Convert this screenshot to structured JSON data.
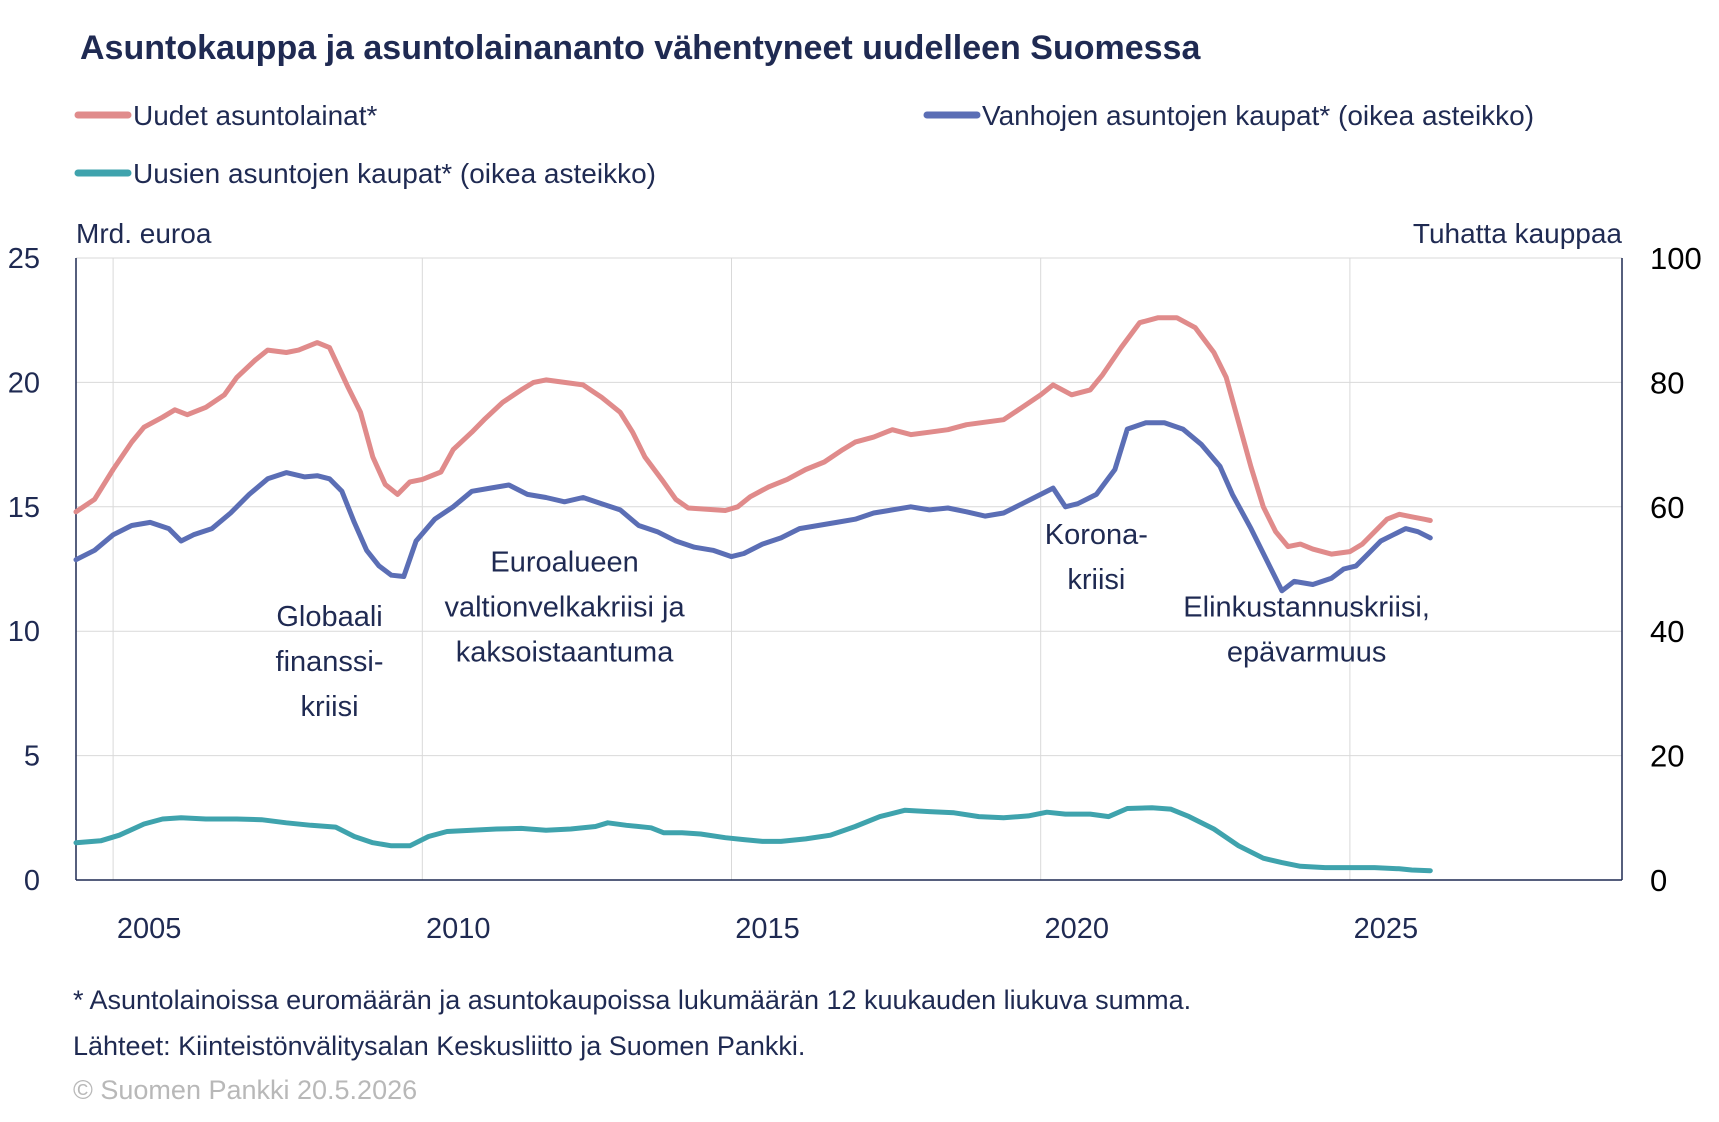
{
  "chart_data": {
    "type": "line",
    "title": "Asuntokauppa ja asuntolainananto vähentyneet uudelleen Suomessa",
    "ylabel_left": "Mrd. euroa",
    "ylabel_right": "Tuhatta kauppaa",
    "ylim_left": [
      0,
      25
    ],
    "ylim_right": [
      0,
      100
    ],
    "xlim": [
      2004.4,
      2029.4
    ],
    "y_ticks_left": [
      0,
      5,
      10,
      15,
      20,
      25
    ],
    "y_ticks_right": [
      0,
      20,
      40,
      60,
      80,
      100
    ],
    "x_ticks": [
      2005,
      2010,
      2015,
      2020,
      2025
    ],
    "grid": true,
    "legend": "top",
    "series": [
      {
        "name": "Uudet asuntolainat*",
        "axis": "left",
        "color": "#e08b8b",
        "points": [
          [
            2004.4,
            14.8
          ],
          [
            2004.7,
            15.3
          ],
          [
            2005.0,
            16.5
          ],
          [
            2005.3,
            17.6
          ],
          [
            2005.5,
            18.2
          ],
          [
            2005.8,
            18.6
          ],
          [
            2006.0,
            18.9
          ],
          [
            2006.2,
            18.7
          ],
          [
            2006.5,
            19.0
          ],
          [
            2006.8,
            19.5
          ],
          [
            2007.0,
            20.2
          ],
          [
            2007.3,
            20.9
          ],
          [
            2007.5,
            21.3
          ],
          [
            2007.8,
            21.2
          ],
          [
            2008.0,
            21.3
          ],
          [
            2008.3,
            21.6
          ],
          [
            2008.5,
            21.4
          ],
          [
            2008.8,
            19.8
          ],
          [
            2009.0,
            18.8
          ],
          [
            2009.2,
            17.0
          ],
          [
            2009.4,
            15.9
          ],
          [
            2009.6,
            15.5
          ],
          [
            2009.8,
            16.0
          ],
          [
            2010.0,
            16.1
          ],
          [
            2010.3,
            16.4
          ],
          [
            2010.5,
            17.3
          ],
          [
            2010.8,
            18.0
          ],
          [
            2011.0,
            18.5
          ],
          [
            2011.3,
            19.2
          ],
          [
            2011.6,
            19.7
          ],
          [
            2011.8,
            20.0
          ],
          [
            2012.0,
            20.1
          ],
          [
            2012.3,
            20.0
          ],
          [
            2012.6,
            19.9
          ],
          [
            2012.9,
            19.4
          ],
          [
            2013.2,
            18.8
          ],
          [
            2013.4,
            18.0
          ],
          [
            2013.6,
            17.0
          ],
          [
            2013.9,
            16.0
          ],
          [
            2014.1,
            15.3
          ],
          [
            2014.3,
            14.95
          ],
          [
            2014.6,
            14.9
          ],
          [
            2014.9,
            14.85
          ],
          [
            2015.1,
            15.0
          ],
          [
            2015.3,
            15.4
          ],
          [
            2015.6,
            15.8
          ],
          [
            2015.9,
            16.1
          ],
          [
            2016.2,
            16.5
          ],
          [
            2016.5,
            16.8
          ],
          [
            2016.8,
            17.3
          ],
          [
            2017.0,
            17.6
          ],
          [
            2017.3,
            17.8
          ],
          [
            2017.6,
            18.1
          ],
          [
            2017.9,
            17.9
          ],
          [
            2018.2,
            18.0
          ],
          [
            2018.5,
            18.1
          ],
          [
            2018.8,
            18.3
          ],
          [
            2019.1,
            18.4
          ],
          [
            2019.4,
            18.5
          ],
          [
            2019.7,
            19.0
          ],
          [
            2020.0,
            19.5
          ],
          [
            2020.2,
            19.9
          ],
          [
            2020.5,
            19.5
          ],
          [
            2020.8,
            19.7
          ],
          [
            2021.0,
            20.3
          ],
          [
            2021.3,
            21.4
          ],
          [
            2021.6,
            22.4
          ],
          [
            2021.9,
            22.6
          ],
          [
            2022.2,
            22.6
          ],
          [
            2022.5,
            22.2
          ],
          [
            2022.8,
            21.2
          ],
          [
            2023.0,
            20.2
          ],
          [
            2023.2,
            18.4
          ],
          [
            2023.4,
            16.6
          ],
          [
            2023.6,
            15.0
          ],
          [
            2023.8,
            14.0
          ],
          [
            2024.0,
            13.4
          ],
          [
            2024.2,
            13.5
          ],
          [
            2024.4,
            13.3
          ],
          [
            2024.7,
            13.1
          ],
          [
            2025.0,
            13.2
          ],
          [
            2025.2,
            13.5
          ],
          [
            2025.4,
            14.0
          ],
          [
            2025.6,
            14.5
          ],
          [
            2025.8,
            14.7
          ],
          [
            2026.0,
            14.6
          ],
          [
            2026.2,
            14.5
          ],
          [
            2026.3,
            14.45
          ]
        ]
      },
      {
        "name": "Vanhojen asuntojen kaupat* (oikea asteikko)",
        "axis": "right",
        "color": "#5b6eb5",
        "points": [
          [
            2004.4,
            51.5
          ],
          [
            2004.7,
            53.0
          ],
          [
            2005.0,
            55.5
          ],
          [
            2005.3,
            57.0
          ],
          [
            2005.6,
            57.5
          ],
          [
            2005.9,
            56.5
          ],
          [
            2006.1,
            54.5
          ],
          [
            2006.3,
            55.5
          ],
          [
            2006.6,
            56.5
          ],
          [
            2006.9,
            59.0
          ],
          [
            2007.2,
            62.0
          ],
          [
            2007.5,
            64.5
          ],
          [
            2007.8,
            65.5
          ],
          [
            2008.1,
            64.8
          ],
          [
            2008.3,
            65.0
          ],
          [
            2008.5,
            64.5
          ],
          [
            2008.7,
            62.5
          ],
          [
            2008.9,
            57.5
          ],
          [
            2009.1,
            53.0
          ],
          [
            2009.3,
            50.5
          ],
          [
            2009.5,
            49.0
          ],
          [
            2009.7,
            48.8
          ],
          [
            2009.9,
            54.5
          ],
          [
            2010.2,
            58.0
          ],
          [
            2010.5,
            60.0
          ],
          [
            2010.8,
            62.5
          ],
          [
            2011.1,
            63.0
          ],
          [
            2011.4,
            63.5
          ],
          [
            2011.7,
            62.0
          ],
          [
            2012.0,
            61.5
          ],
          [
            2012.3,
            60.8
          ],
          [
            2012.6,
            61.5
          ],
          [
            2012.9,
            60.5
          ],
          [
            2013.2,
            59.5
          ],
          [
            2013.5,
            57.0
          ],
          [
            2013.8,
            56.0
          ],
          [
            2014.1,
            54.5
          ],
          [
            2014.4,
            53.5
          ],
          [
            2014.7,
            53.0
          ],
          [
            2015.0,
            52.0
          ],
          [
            2015.2,
            52.5
          ],
          [
            2015.5,
            54.0
          ],
          [
            2015.8,
            55.0
          ],
          [
            2016.1,
            56.5
          ],
          [
            2016.4,
            57.0
          ],
          [
            2016.7,
            57.5
          ],
          [
            2017.0,
            58.0
          ],
          [
            2017.3,
            59.0
          ],
          [
            2017.6,
            59.5
          ],
          [
            2017.9,
            60.0
          ],
          [
            2018.2,
            59.5
          ],
          [
            2018.5,
            59.8
          ],
          [
            2018.8,
            59.2
          ],
          [
            2019.1,
            58.5
          ],
          [
            2019.4,
            59.0
          ],
          [
            2019.7,
            60.5
          ],
          [
            2020.0,
            62.0
          ],
          [
            2020.2,
            63.0
          ],
          [
            2020.4,
            60.0
          ],
          [
            2020.6,
            60.5
          ],
          [
            2020.9,
            62.0
          ],
          [
            2021.2,
            66.0
          ],
          [
            2021.4,
            72.5
          ],
          [
            2021.7,
            73.5
          ],
          [
            2022.0,
            73.5
          ],
          [
            2022.3,
            72.5
          ],
          [
            2022.6,
            70.0
          ],
          [
            2022.9,
            66.5
          ],
          [
            2023.1,
            62.0
          ],
          [
            2023.4,
            56.5
          ],
          [
            2023.7,
            50.5
          ],
          [
            2023.9,
            46.5
          ],
          [
            2024.1,
            48.0
          ],
          [
            2024.4,
            47.5
          ],
          [
            2024.7,
            48.5
          ],
          [
            2024.9,
            50.0
          ],
          [
            2025.1,
            50.5
          ],
          [
            2025.3,
            52.5
          ],
          [
            2025.5,
            54.5
          ],
          [
            2025.7,
            55.5
          ],
          [
            2025.9,
            56.5
          ],
          [
            2026.1,
            56.0
          ],
          [
            2026.3,
            55.0
          ]
        ]
      },
      {
        "name": "Uusien asuntojen kaupat* (oikea asteikko)",
        "axis": "right",
        "color": "#3fa3ad",
        "points": [
          [
            2004.4,
            6.0
          ],
          [
            2004.8,
            6.3
          ],
          [
            2005.1,
            7.2
          ],
          [
            2005.5,
            9.0
          ],
          [
            2005.8,
            9.8
          ],
          [
            2006.1,
            10.0
          ],
          [
            2006.5,
            9.8
          ],
          [
            2007.0,
            9.8
          ],
          [
            2007.4,
            9.7
          ],
          [
            2007.8,
            9.2
          ],
          [
            2008.2,
            8.8
          ],
          [
            2008.6,
            8.5
          ],
          [
            2008.9,
            7.0
          ],
          [
            2009.2,
            6.0
          ],
          [
            2009.5,
            5.5
          ],
          [
            2009.8,
            5.5
          ],
          [
            2010.1,
            7.0
          ],
          [
            2010.4,
            7.8
          ],
          [
            2010.8,
            8.0
          ],
          [
            2011.2,
            8.2
          ],
          [
            2011.6,
            8.3
          ],
          [
            2012.0,
            8.0
          ],
          [
            2012.4,
            8.2
          ],
          [
            2012.8,
            8.6
          ],
          [
            2013.0,
            9.2
          ],
          [
            2013.3,
            8.8
          ],
          [
            2013.7,
            8.4
          ],
          [
            2013.9,
            7.6
          ],
          [
            2014.2,
            7.6
          ],
          [
            2014.5,
            7.4
          ],
          [
            2014.9,
            6.8
          ],
          [
            2015.2,
            6.5
          ],
          [
            2015.5,
            6.2
          ],
          [
            2015.8,
            6.2
          ],
          [
            2016.2,
            6.6
          ],
          [
            2016.6,
            7.2
          ],
          [
            2017.0,
            8.6
          ],
          [
            2017.4,
            10.2
          ],
          [
            2017.8,
            11.2
          ],
          [
            2018.2,
            11.0
          ],
          [
            2018.6,
            10.8
          ],
          [
            2019.0,
            10.2
          ],
          [
            2019.4,
            10.0
          ],
          [
            2019.8,
            10.3
          ],
          [
            2020.1,
            10.9
          ],
          [
            2020.4,
            10.6
          ],
          [
            2020.8,
            10.6
          ],
          [
            2021.1,
            10.2
          ],
          [
            2021.4,
            11.5
          ],
          [
            2021.8,
            11.6
          ],
          [
            2022.1,
            11.4
          ],
          [
            2022.4,
            10.2
          ],
          [
            2022.8,
            8.2
          ],
          [
            2023.2,
            5.5
          ],
          [
            2023.6,
            3.5
          ],
          [
            2023.9,
            2.8
          ],
          [
            2024.2,
            2.2
          ],
          [
            2024.6,
            2.0
          ],
          [
            2025.0,
            2.0
          ],
          [
            2025.4,
            2.0
          ],
          [
            2025.8,
            1.8
          ],
          [
            2026.0,
            1.6
          ],
          [
            2026.3,
            1.5
          ]
        ]
      }
    ],
    "annotations": [
      {
        "lines": [
          "Globaali",
          "finanssi-",
          "kriisi"
        ],
        "x": 2008.5,
        "y": 10.2
      },
      {
        "lines": [
          "Euroalueen",
          "valtionvelkakriisi ja",
          "kaksoistaantuma"
        ],
        "x": 2012.3,
        "y": 12.4
      },
      {
        "lines": [
          "Korona-",
          "kriisi"
        ],
        "x": 2020.9,
        "y": 13.5
      },
      {
        "lines": [
          "Elinkustannuskriisi,",
          "epävarmuus"
        ],
        "x": 2024.3,
        "y": 10.6
      }
    ]
  },
  "footer": {
    "note": "* Asuntolainoissa euromäärän ja asuntokaupoissa lukumäärän 12 kuukauden liukuva summa.",
    "sources": "Lähteet: Kiinteistönvälitysalan Keskusliitto ja Suomen Pankki.",
    "copyright": "© Suomen Pankki 20.5.2026"
  }
}
